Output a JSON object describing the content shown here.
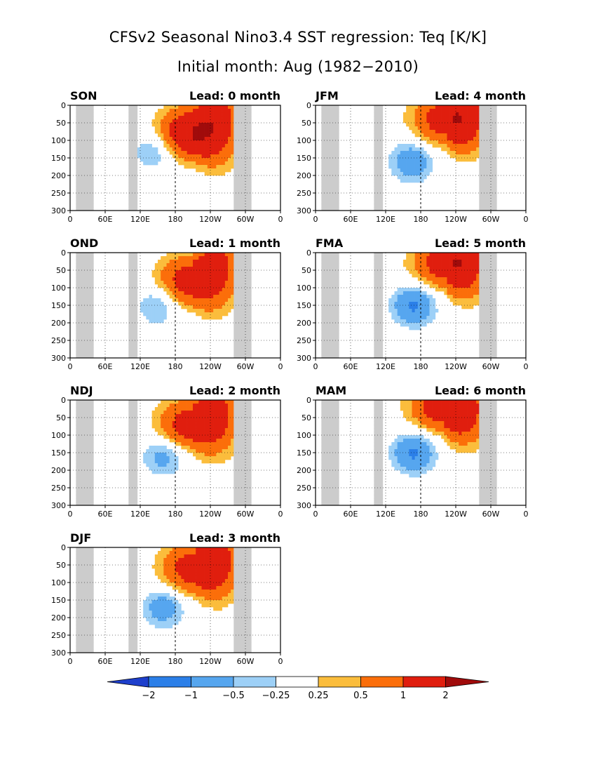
{
  "chart_data": {
    "type": "heatmap",
    "title": "CFSv2 Seasonal Nino3.4 SST regression: Teq [K/K]",
    "subtitle": "Initial month: Aug (1982−2010)",
    "x_tick_labels": [
      "0",
      "60E",
      "120E",
      "180",
      "120W",
      "60W",
      "0"
    ],
    "x_range_deg_east": [
      0,
      360
    ],
    "y_tick_labels": [
      "0",
      "50",
      "100",
      "150",
      "200",
      "250",
      "300"
    ],
    "y_range": [
      0,
      300
    ],
    "y_inverted": true,
    "dateline_dashed_x": 180,
    "land_mask_color": "#cccccc",
    "land_bands_deg_east": [
      [
        10,
        42
      ],
      [
        100,
        115
      ],
      [
        282,
        312
      ]
    ],
    "colorbar": {
      "labels": [
        "−2",
        "−1",
        "−0.5",
        "−0.25",
        "0.25",
        "0.5",
        "1",
        "2"
      ],
      "levels": [
        -2,
        -1,
        -0.5,
        -0.25,
        0.25,
        0.5,
        1,
        2
      ],
      "colors": [
        "#1e3fcc",
        "#2b7fe8",
        "#56a6ef",
        "#9dd0f7",
        "#ffffff",
        "#fbbd3c",
        "#fb6e0a",
        "#e01e0e",
        "#a00b0b"
      ]
    },
    "panels": [
      {
        "season": "SON",
        "lead": "Lead: 0 month",
        "warm_core": {
          "lon": 212,
          "depth": 80,
          "max": 2.0
        },
        "cool_core": {
          "lon": 145,
          "depth": 130,
          "min": -0.6
        }
      },
      {
        "season": "OND",
        "lead": "Lead: 1 month",
        "warm_core": {
          "lon": 210,
          "depth": 80,
          "max": 1.5
        },
        "cool_core": {
          "lon": 150,
          "depth": 150,
          "min": -0.6
        }
      },
      {
        "season": "NDJ",
        "lead": "Lead: 2 month",
        "warm_core": {
          "lon": 210,
          "depth": 70,
          "max": 1.5
        },
        "cool_core": {
          "lon": 160,
          "depth": 160,
          "min": -0.7
        }
      },
      {
        "season": "DJF",
        "lead": "Lead: 3 month",
        "warm_core": {
          "lon": 215,
          "depth": 60,
          "max": 1.5
        },
        "cool_core": {
          "lon": 160,
          "depth": 170,
          "min": -0.8
        }
      },
      {
        "season": "JFM",
        "lead": "Lead: 4 month",
        "warm_core": {
          "lon": 225,
          "depth": 40,
          "max": 1.5
        },
        "cool_core": {
          "lon": 165,
          "depth": 160,
          "min": -0.9
        }
      },
      {
        "season": "FMA",
        "lead": "Lead: 5 month",
        "warm_core": {
          "lon": 225,
          "depth": 30,
          "max": 1.5
        },
        "cool_core": {
          "lon": 168,
          "depth": 150,
          "min": -1.1
        }
      },
      {
        "season": "MAM",
        "lead": "Lead: 6 month",
        "warm_core": {
          "lon": 220,
          "depth": 20,
          "max": 1.5
        },
        "cool_core": {
          "lon": 168,
          "depth": 150,
          "min": -1.1
        }
      }
    ]
  }
}
